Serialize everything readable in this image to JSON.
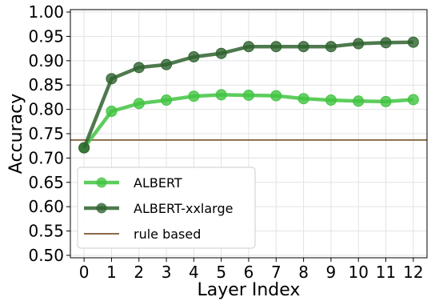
{
  "chart_data": {
    "type": "line",
    "xlabel": "Layer Index",
    "ylabel": "Accuracy",
    "x": [
      0,
      1,
      2,
      3,
      4,
      5,
      6,
      7,
      8,
      9,
      10,
      11,
      12
    ],
    "xlim": [
      -0.5,
      12.5
    ],
    "ylim": [
      0.495,
      1.005
    ],
    "yticks": [
      0.5,
      0.55,
      0.6,
      0.65,
      0.7,
      0.75,
      0.8,
      0.85,
      0.9,
      0.95,
      1.0
    ],
    "ytick_labels": [
      "0.50",
      "0.55",
      "0.60",
      "0.65",
      "0.70",
      "0.75",
      "0.80",
      "0.85",
      "0.90",
      "0.95",
      "1.00"
    ],
    "grid": true,
    "legend_position": "lower-left",
    "series": [
      {
        "name": "ALBERT",
        "color": "#41c441",
        "marker": "circle",
        "values": [
          0.721,
          0.796,
          0.812,
          0.819,
          0.827,
          0.83,
          0.829,
          0.828,
          0.822,
          0.819,
          0.817,
          0.816,
          0.82
        ]
      },
      {
        "name": "ALBERT-xxlarge",
        "color": "#2f632f",
        "marker": "circle",
        "values": [
          0.721,
          0.863,
          0.886,
          0.892,
          0.908,
          0.915,
          0.929,
          0.929,
          0.929,
          0.929,
          0.935,
          0.937,
          0.938
        ]
      }
    ],
    "hlines": [
      {
        "name": "rule based",
        "value": 0.737,
        "color": "#8b6a47"
      }
    ]
  }
}
